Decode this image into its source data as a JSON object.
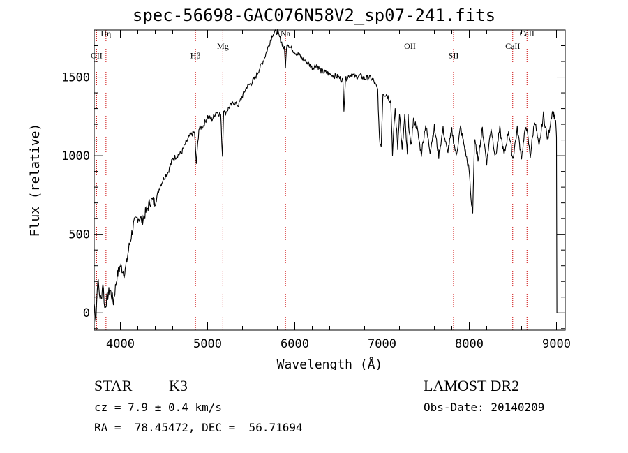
{
  "chart_data": {
    "type": "line",
    "title": "spec-56698-GAC076N58V2_sp07-241.fits",
    "xlabel": "Wavelength (Å)",
    "ylabel": "Flux (relative)",
    "xlim": [
      3700,
      9100
    ],
    "ylim": [
      -110,
      1800
    ],
    "xticks": [
      4000,
      5000,
      6000,
      7000,
      8000,
      9000
    ],
    "yticks": [
      0,
      500,
      1000,
      1500
    ],
    "grid": false,
    "line_color": "#000000",
    "marker_color": "#cc0000",
    "spectral_lines": [
      {
        "label": "Hη",
        "x": 3835,
        "label_y": 1760
      },
      {
        "label": "OII",
        "x": 3727,
        "label_y": 1620
      },
      {
        "label": "Hβ",
        "x": 4861,
        "label_y": 1620
      },
      {
        "label": "Mg",
        "x": 5175,
        "label_y": 1680
      },
      {
        "label": "Na",
        "x": 5893,
        "label_y": 1760
      },
      {
        "label": "OII",
        "x": 7320,
        "label_y": 1680
      },
      {
        "label": "SII",
        "x": 7820,
        "label_y": 1620
      },
      {
        "label": "CaII",
        "x": 8498,
        "label_y": 1680
      },
      {
        "label": "CaII",
        "x": 8662,
        "label_y": 1760
      }
    ],
    "series": [
      {
        "x": [
          3700,
          3720,
          3740,
          3760,
          3780,
          3800,
          3820,
          3850,
          3880,
          3920,
          3960,
          4000,
          4050,
          4100,
          4150,
          4200,
          4250,
          4300,
          4350,
          4400,
          4450,
          4500,
          4550,
          4600,
          4650,
          4700,
          4750,
          4800,
          4850,
          4870,
          4900,
          4950,
          5000,
          5050,
          5100,
          5150,
          5170,
          5185,
          5200,
          5250,
          5300,
          5350,
          5400,
          5450,
          5500,
          5550,
          5600,
          5650,
          5700,
          5750,
          5800,
          5850,
          5880,
          5893,
          5910,
          5950,
          6000,
          6050,
          6100,
          6150,
          6200,
          6250,
          6300,
          6350,
          6400,
          6450,
          6500,
          6550,
          6563,
          6580,
          6600,
          6650,
          6700,
          6750,
          6800,
          6850,
          6900,
          6950,
          6970,
          6990,
          7010,
          7050,
          7100,
          7120,
          7150,
          7180,
          7200,
          7230,
          7260,
          7290,
          7300,
          7330,
          7360,
          7400,
          7450,
          7500,
          7550,
          7600,
          7650,
          7700,
          7750,
          7800,
          7850,
          7900,
          7950,
          8000,
          8020,
          8040,
          8060,
          8100,
          8150,
          8200,
          8250,
          8300,
          8350,
          8400,
          8450,
          8500,
          8550,
          8600,
          8650,
          8700,
          8750,
          8800,
          8850,
          8900,
          8950,
          8980,
          8995,
          9000,
          9005
        ],
        "y": [
          60,
          -40,
          220,
          120,
          80,
          200,
          30,
          100,
          150,
          70,
          230,
          300,
          250,
          420,
          560,
          610,
          590,
          650,
          720,
          700,
          800,
          860,
          900,
          980,
          1000,
          1020,
          1080,
          1130,
          1150,
          950,
          1170,
          1190,
          1250,
          1230,
          1280,
          1260,
          1000,
          1300,
          1270,
          1310,
          1340,
          1320,
          1380,
          1440,
          1460,
          1500,
          1560,
          1620,
          1700,
          1780,
          1790,
          1720,
          1680,
          1570,
          1720,
          1690,
          1660,
          1640,
          1610,
          1590,
          1560,
          1580,
          1540,
          1530,
          1520,
          1510,
          1500,
          1480,
          1300,
          1480,
          1500,
          1520,
          1500,
          1510,
          1490,
          1500,
          1480,
          1420,
          1100,
          1060,
          1400,
          1390,
          1350,
          1020,
          1300,
          1050,
          1280,
          1030,
          1250,
          1000,
          1240,
          1050,
          1230,
          1180,
          1010,
          1200,
          1030,
          1180,
          1000,
          1170,
          1020,
          1160,
          1000,
          1180,
          1040,
          900,
          720,
          650,
          1100,
          980,
          1170,
          960,
          1180,
          990,
          1170,
          1000,
          1160,
          980,
          1170,
          990,
          1200,
          1000,
          1230,
          1050,
          1260,
          1100,
          1280,
          1250,
          1180,
          1100,
          0
        ]
      }
    ]
  },
  "info": {
    "object_class": "STAR",
    "subclass": "K3",
    "survey": "LAMOST DR2",
    "redshift": "cz = 7.9 ± 0.4 km/s",
    "obs_date": "Obs-Date: 20140209",
    "coords": "RA =  78.45472, DEC =  56.71694"
  }
}
